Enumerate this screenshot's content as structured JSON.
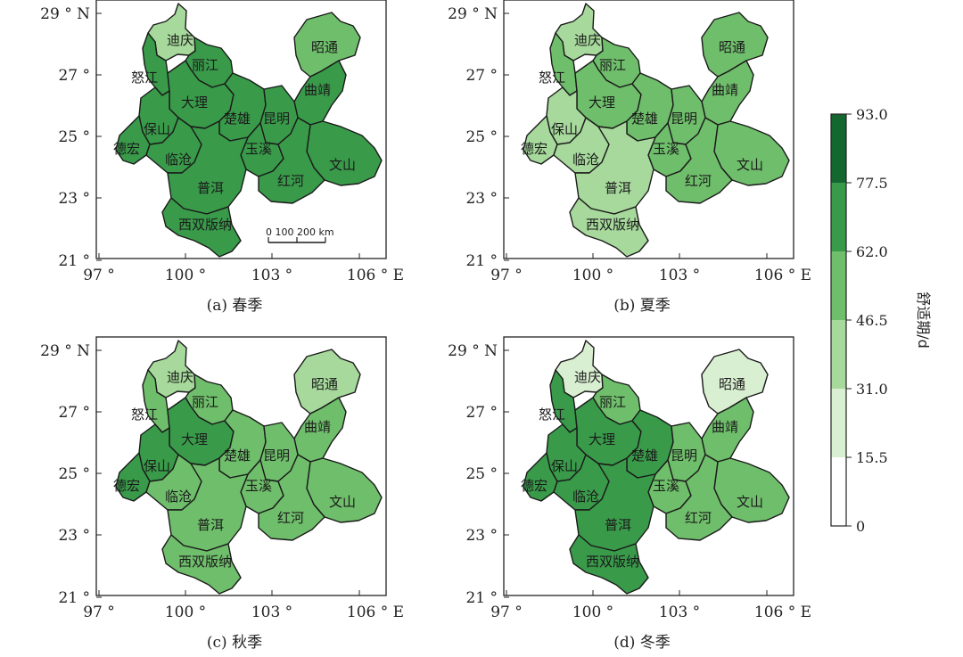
{
  "colors": {
    "scale": [
      "#ffffff",
      "#d9efd1",
      "#a6d99b",
      "#6fbe6b",
      "#399a4a",
      "#14682f"
    ],
    "boundary": "#1a1a1a",
    "frame": "#222222"
  },
  "axis": {
    "lat": [
      "21 °",
      "23 °",
      "25 °",
      "27 °",
      "29 ° N"
    ],
    "lon": [
      "97 °",
      "100 °",
      "103 °",
      "106 ° E"
    ]
  },
  "scalebar": {
    "label": "0   100  200 km"
  },
  "colorbar": {
    "title": "舒适期/d",
    "ticks": [
      "0",
      "15.5",
      "31.0",
      "46.5",
      "62.0",
      "77.5",
      "93.0"
    ]
  },
  "places": {
    "diqing": "迪庆",
    "nujiang": "怒江",
    "lijiang": "丽江",
    "zhaotong": "昭通",
    "dali": "大理",
    "qujing": "曲靖",
    "baoshan": "保山",
    "chuxiong": "楚雄",
    "kunming": "昆明",
    "dehong": "德宏",
    "lincang": "临沧",
    "yuxi": "玉溪",
    "wenshan": "文山",
    "puer": "普洱",
    "honghe": "红河",
    "xishuangbanna": "西双版纳"
  },
  "panels": [
    {
      "caption": "(a) 春季",
      "season": "spring",
      "levels": {
        "diqing": 2,
        "nujiang": 4,
        "lijiang": 4,
        "zhaotong": 3,
        "dali": 4,
        "qujing": 4,
        "baoshan": 4,
        "chuxiong": 4,
        "kunming": 4,
        "dehong": 4,
        "lincang": 4,
        "yuxi": 4,
        "wenshan": 4,
        "puer": 4,
        "honghe": 4,
        "xishuangbanna": 4
      }
    },
    {
      "caption": "(b) 夏季",
      "season": "summer",
      "levels": {
        "diqing": 2,
        "nujiang": 3,
        "lijiang": 3,
        "zhaotong": 3,
        "dali": 3,
        "qujing": 3,
        "baoshan": 2,
        "chuxiong": 3,
        "kunming": 3,
        "dehong": 2,
        "lincang": 2,
        "yuxi": 3,
        "wenshan": 3,
        "puer": 2,
        "honghe": 3,
        "xishuangbanna": 2
      }
    },
    {
      "caption": "(c) 秋季",
      "season": "autumn",
      "levels": {
        "diqing": 2,
        "nujiang": 3,
        "lijiang": 3,
        "zhaotong": 2,
        "dali": 4,
        "qujing": 3,
        "baoshan": 4,
        "chuxiong": 3,
        "kunming": 3,
        "dehong": 4,
        "lincang": 3,
        "yuxi": 3,
        "wenshan": 3,
        "puer": 3,
        "honghe": 3,
        "xishuangbanna": 3
      }
    },
    {
      "caption": "(d) 冬季",
      "season": "winter",
      "levels": {
        "diqing": 1,
        "nujiang": 4,
        "lijiang": 3,
        "zhaotong": 1,
        "dali": 4,
        "qujing": 3,
        "baoshan": 4,
        "chuxiong": 4,
        "kunming": 3,
        "dehong": 4,
        "lincang": 4,
        "yuxi": 3,
        "wenshan": 3,
        "puer": 4,
        "honghe": 3,
        "xishuangbanna": 4
      }
    }
  ]
}
